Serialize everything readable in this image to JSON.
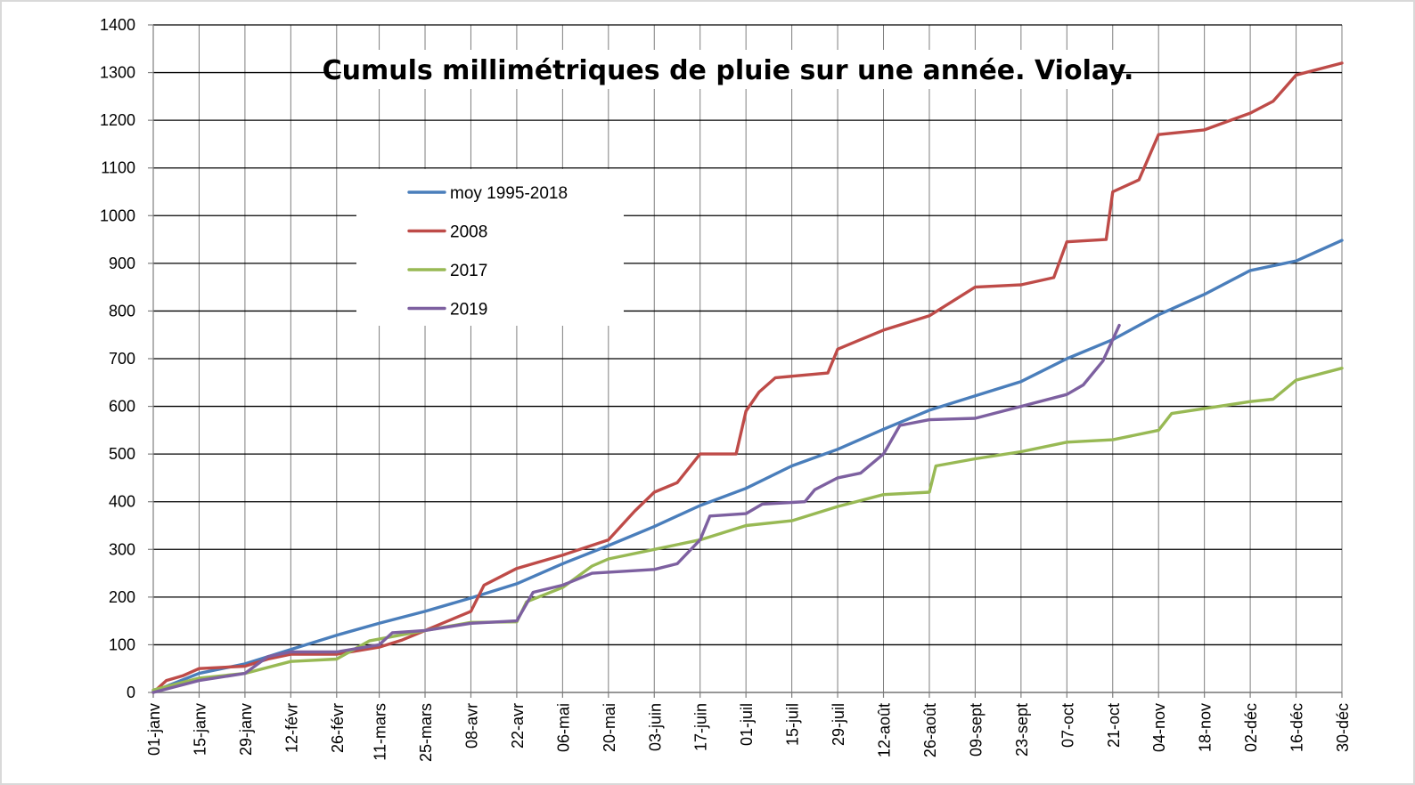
{
  "chart_data": {
    "type": "line",
    "title": "Cumuls millimétriques de pluie sur une année. Violay.",
    "xlabel": "",
    "ylabel": "",
    "ylim": [
      0,
      1400
    ],
    "xlim": [
      "01-janv",
      "30-déc"
    ],
    "y_ticks": [
      0,
      100,
      200,
      300,
      400,
      500,
      600,
      700,
      800,
      900,
      1000,
      1100,
      1200,
      1300,
      1400
    ],
    "x_tick_labels": [
      "01-janv",
      "15-janv",
      "29-janv",
      "12-févr",
      "26-févr",
      "11-mars",
      "25-mars",
      "08-avr",
      "22-avr",
      "06-mai",
      "20-mai",
      "03-juin",
      "17-juin",
      "01-juil",
      "15-juil",
      "29-juil",
      "12-août",
      "26-août",
      "09-sept",
      "23-sept",
      "07-oct",
      "21-oct",
      "04-nov",
      "18-nov",
      "02-déc",
      "16-déc",
      "30-déc"
    ],
    "grid": true,
    "legend_position": "upper-left",
    "series": [
      {
        "name": "moy 1995-2018",
        "color": "#4a7ebb",
        "points": [
          [
            "01-janv",
            2
          ],
          [
            "15-janv",
            40
          ],
          [
            "29-janv",
            60
          ],
          [
            "12-févr",
            90
          ],
          [
            "26-févr",
            120
          ],
          [
            "11-mars",
            145
          ],
          [
            "25-mars",
            170
          ],
          [
            "08-avr",
            198
          ],
          [
            "22-avr",
            228
          ],
          [
            "06-mai",
            270
          ],
          [
            "20-mai",
            308
          ],
          [
            "03-juin",
            348
          ],
          [
            "17-juin",
            392
          ],
          [
            "01-juil",
            428
          ],
          [
            "15-juil",
            475
          ],
          [
            "29-juil",
            510
          ],
          [
            "12-août",
            552
          ],
          [
            "26-août",
            592
          ],
          [
            "09-sept",
            622
          ],
          [
            "23-sept",
            652
          ],
          [
            "07-oct",
            700
          ],
          [
            "21-oct",
            740
          ],
          [
            "04-nov",
            792
          ],
          [
            "18-nov",
            835
          ],
          [
            "02-déc",
            885
          ],
          [
            "16-déc",
            905
          ],
          [
            "30-déc",
            948
          ]
        ]
      },
      {
        "name": "2008",
        "color": "#be4b48",
        "points": [
          [
            "01-janv",
            0
          ],
          [
            "05-janv",
            25
          ],
          [
            "10-janv",
            35
          ],
          [
            "15-janv",
            50
          ],
          [
            "29-janv",
            55
          ],
          [
            "05-févr",
            70
          ],
          [
            "12-févr",
            80
          ],
          [
            "26-févr",
            80
          ],
          [
            "11-mars",
            95
          ],
          [
            "18-mars",
            110
          ],
          [
            "25-mars",
            130
          ],
          [
            "08-avr",
            170
          ],
          [
            "12-avr",
            225
          ],
          [
            "22-avr",
            260
          ],
          [
            "06-mai",
            288
          ],
          [
            "20-mai",
            320
          ],
          [
            "28-mai",
            380
          ],
          [
            "03-juin",
            420
          ],
          [
            "10-juin",
            440
          ],
          [
            "17-juin",
            500
          ],
          [
            "28-juin",
            500
          ],
          [
            "01-juil",
            590
          ],
          [
            "05-juil",
            630
          ],
          [
            "10-juil",
            660
          ],
          [
            "26-juil",
            670
          ],
          [
            "29-juil",
            720
          ],
          [
            "05-août",
            740
          ],
          [
            "12-août",
            760
          ],
          [
            "26-août",
            790
          ],
          [
            "09-sept",
            850
          ],
          [
            "23-sept",
            855
          ],
          [
            "03-oct",
            870
          ],
          [
            "07-oct",
            945
          ],
          [
            "19-oct",
            950
          ],
          [
            "21-oct",
            1050
          ],
          [
            "29-oct",
            1075
          ],
          [
            "04-nov",
            1170
          ],
          [
            "18-nov",
            1180
          ],
          [
            "02-déc",
            1215
          ],
          [
            "09-déc",
            1240
          ],
          [
            "16-déc",
            1295
          ],
          [
            "30-déc",
            1320
          ]
        ]
      },
      {
        "name": "2017",
        "color": "#98b954",
        "points": [
          [
            "01-janv",
            5
          ],
          [
            "15-janv",
            30
          ],
          [
            "29-janv",
            40
          ],
          [
            "12-févr",
            65
          ],
          [
            "26-févr",
            70
          ],
          [
            "08-mars",
            108
          ],
          [
            "25-mars",
            130
          ],
          [
            "08-avr",
            147
          ],
          [
            "22-avr",
            148
          ],
          [
            "25-avr",
            190
          ],
          [
            "06-mai",
            220
          ],
          [
            "15-mai",
            265
          ],
          [
            "20-mai",
            280
          ],
          [
            "03-juin",
            300
          ],
          [
            "17-juin",
            320
          ],
          [
            "01-juil",
            350
          ],
          [
            "15-juil",
            360
          ],
          [
            "29-juil",
            390
          ],
          [
            "12-août",
            415
          ],
          [
            "26-août",
            420
          ],
          [
            "28-août",
            475
          ],
          [
            "09-sept",
            490
          ],
          [
            "23-sept",
            505
          ],
          [
            "07-oct",
            525
          ],
          [
            "21-oct",
            530
          ],
          [
            "04-nov",
            550
          ],
          [
            "08-nov",
            585
          ],
          [
            "02-déc",
            610
          ],
          [
            "09-déc",
            615
          ],
          [
            "16-déc",
            655
          ],
          [
            "30-déc",
            680
          ]
        ]
      },
      {
        "name": "2019",
        "color": "#7d60a0",
        "points": [
          [
            "01-janv",
            0
          ],
          [
            "15-janv",
            25
          ],
          [
            "29-janv",
            40
          ],
          [
            "05-févr",
            75
          ],
          [
            "12-févr",
            85
          ],
          [
            "26-févr",
            85
          ],
          [
            "11-mars",
            100
          ],
          [
            "15-mars",
            125
          ],
          [
            "25-mars",
            130
          ],
          [
            "08-avr",
            145
          ],
          [
            "22-avr",
            150
          ],
          [
            "27-avr",
            210
          ],
          [
            "06-mai",
            225
          ],
          [
            "15-mai",
            250
          ],
          [
            "03-juin",
            258
          ],
          [
            "10-juin",
            270
          ],
          [
            "17-juin",
            320
          ],
          [
            "20-juin",
            370
          ],
          [
            "01-juil",
            375
          ],
          [
            "06-juil",
            395
          ],
          [
            "19-juil",
            400
          ],
          [
            "22-juil",
            425
          ],
          [
            "29-juil",
            450
          ],
          [
            "05-août",
            460
          ],
          [
            "12-août",
            500
          ],
          [
            "17-août",
            560
          ],
          [
            "26-août",
            572
          ],
          [
            "09-sept",
            575
          ],
          [
            "23-sept",
            600
          ],
          [
            "07-oct",
            625
          ],
          [
            "12-oct",
            645
          ],
          [
            "18-oct",
            695
          ],
          [
            "21-oct",
            740
          ],
          [
            "23-oct",
            770
          ]
        ]
      }
    ]
  }
}
